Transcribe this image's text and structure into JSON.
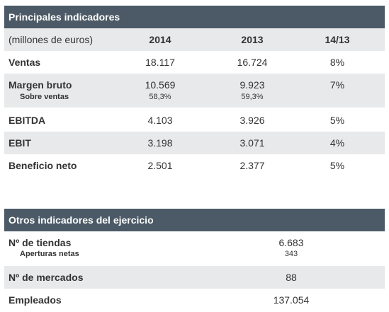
{
  "principales": {
    "title": "Principales indicadores",
    "columns": {
      "unit": "(millones de euros)",
      "y2014": "2014",
      "y2013": "2013",
      "change": "14/13"
    },
    "rows": {
      "ventas": {
        "label": "Ventas",
        "y2014": "18.117",
        "y2013": "16.724",
        "change": "8%"
      },
      "margen": {
        "label": "Margen bruto",
        "y2014": "10.569",
        "y2013": "9.923",
        "change": "7%",
        "sub": {
          "label": "Sobre ventas",
          "y2014": "58,3%",
          "y2013": "59,3%"
        }
      },
      "ebitda": {
        "label": "EBITDA",
        "y2014": "4.103",
        "y2013": "3.926",
        "change": "5%"
      },
      "ebit": {
        "label": "EBIT",
        "y2014": "3.198",
        "y2013": "3.071",
        "change": "4%"
      },
      "beneficio": {
        "label": "Beneficio neto",
        "y2014": "2.501",
        "y2013": "2.377",
        "change": "5%"
      }
    }
  },
  "otros": {
    "title": "Otros indicadores del ejercicio",
    "rows": {
      "tiendas": {
        "label": "Nº de tiendas",
        "value": "6.683",
        "sub": {
          "label": "Aperturas netas",
          "value": "343"
        }
      },
      "mercados": {
        "label": "Nº de mercados",
        "value": "88"
      },
      "empleados": {
        "label": "Empleados",
        "value": "137.054"
      }
    }
  },
  "colors": {
    "header_bg": "#4b5a66",
    "band_bg": "#e8e9ea",
    "text": "#333333"
  }
}
